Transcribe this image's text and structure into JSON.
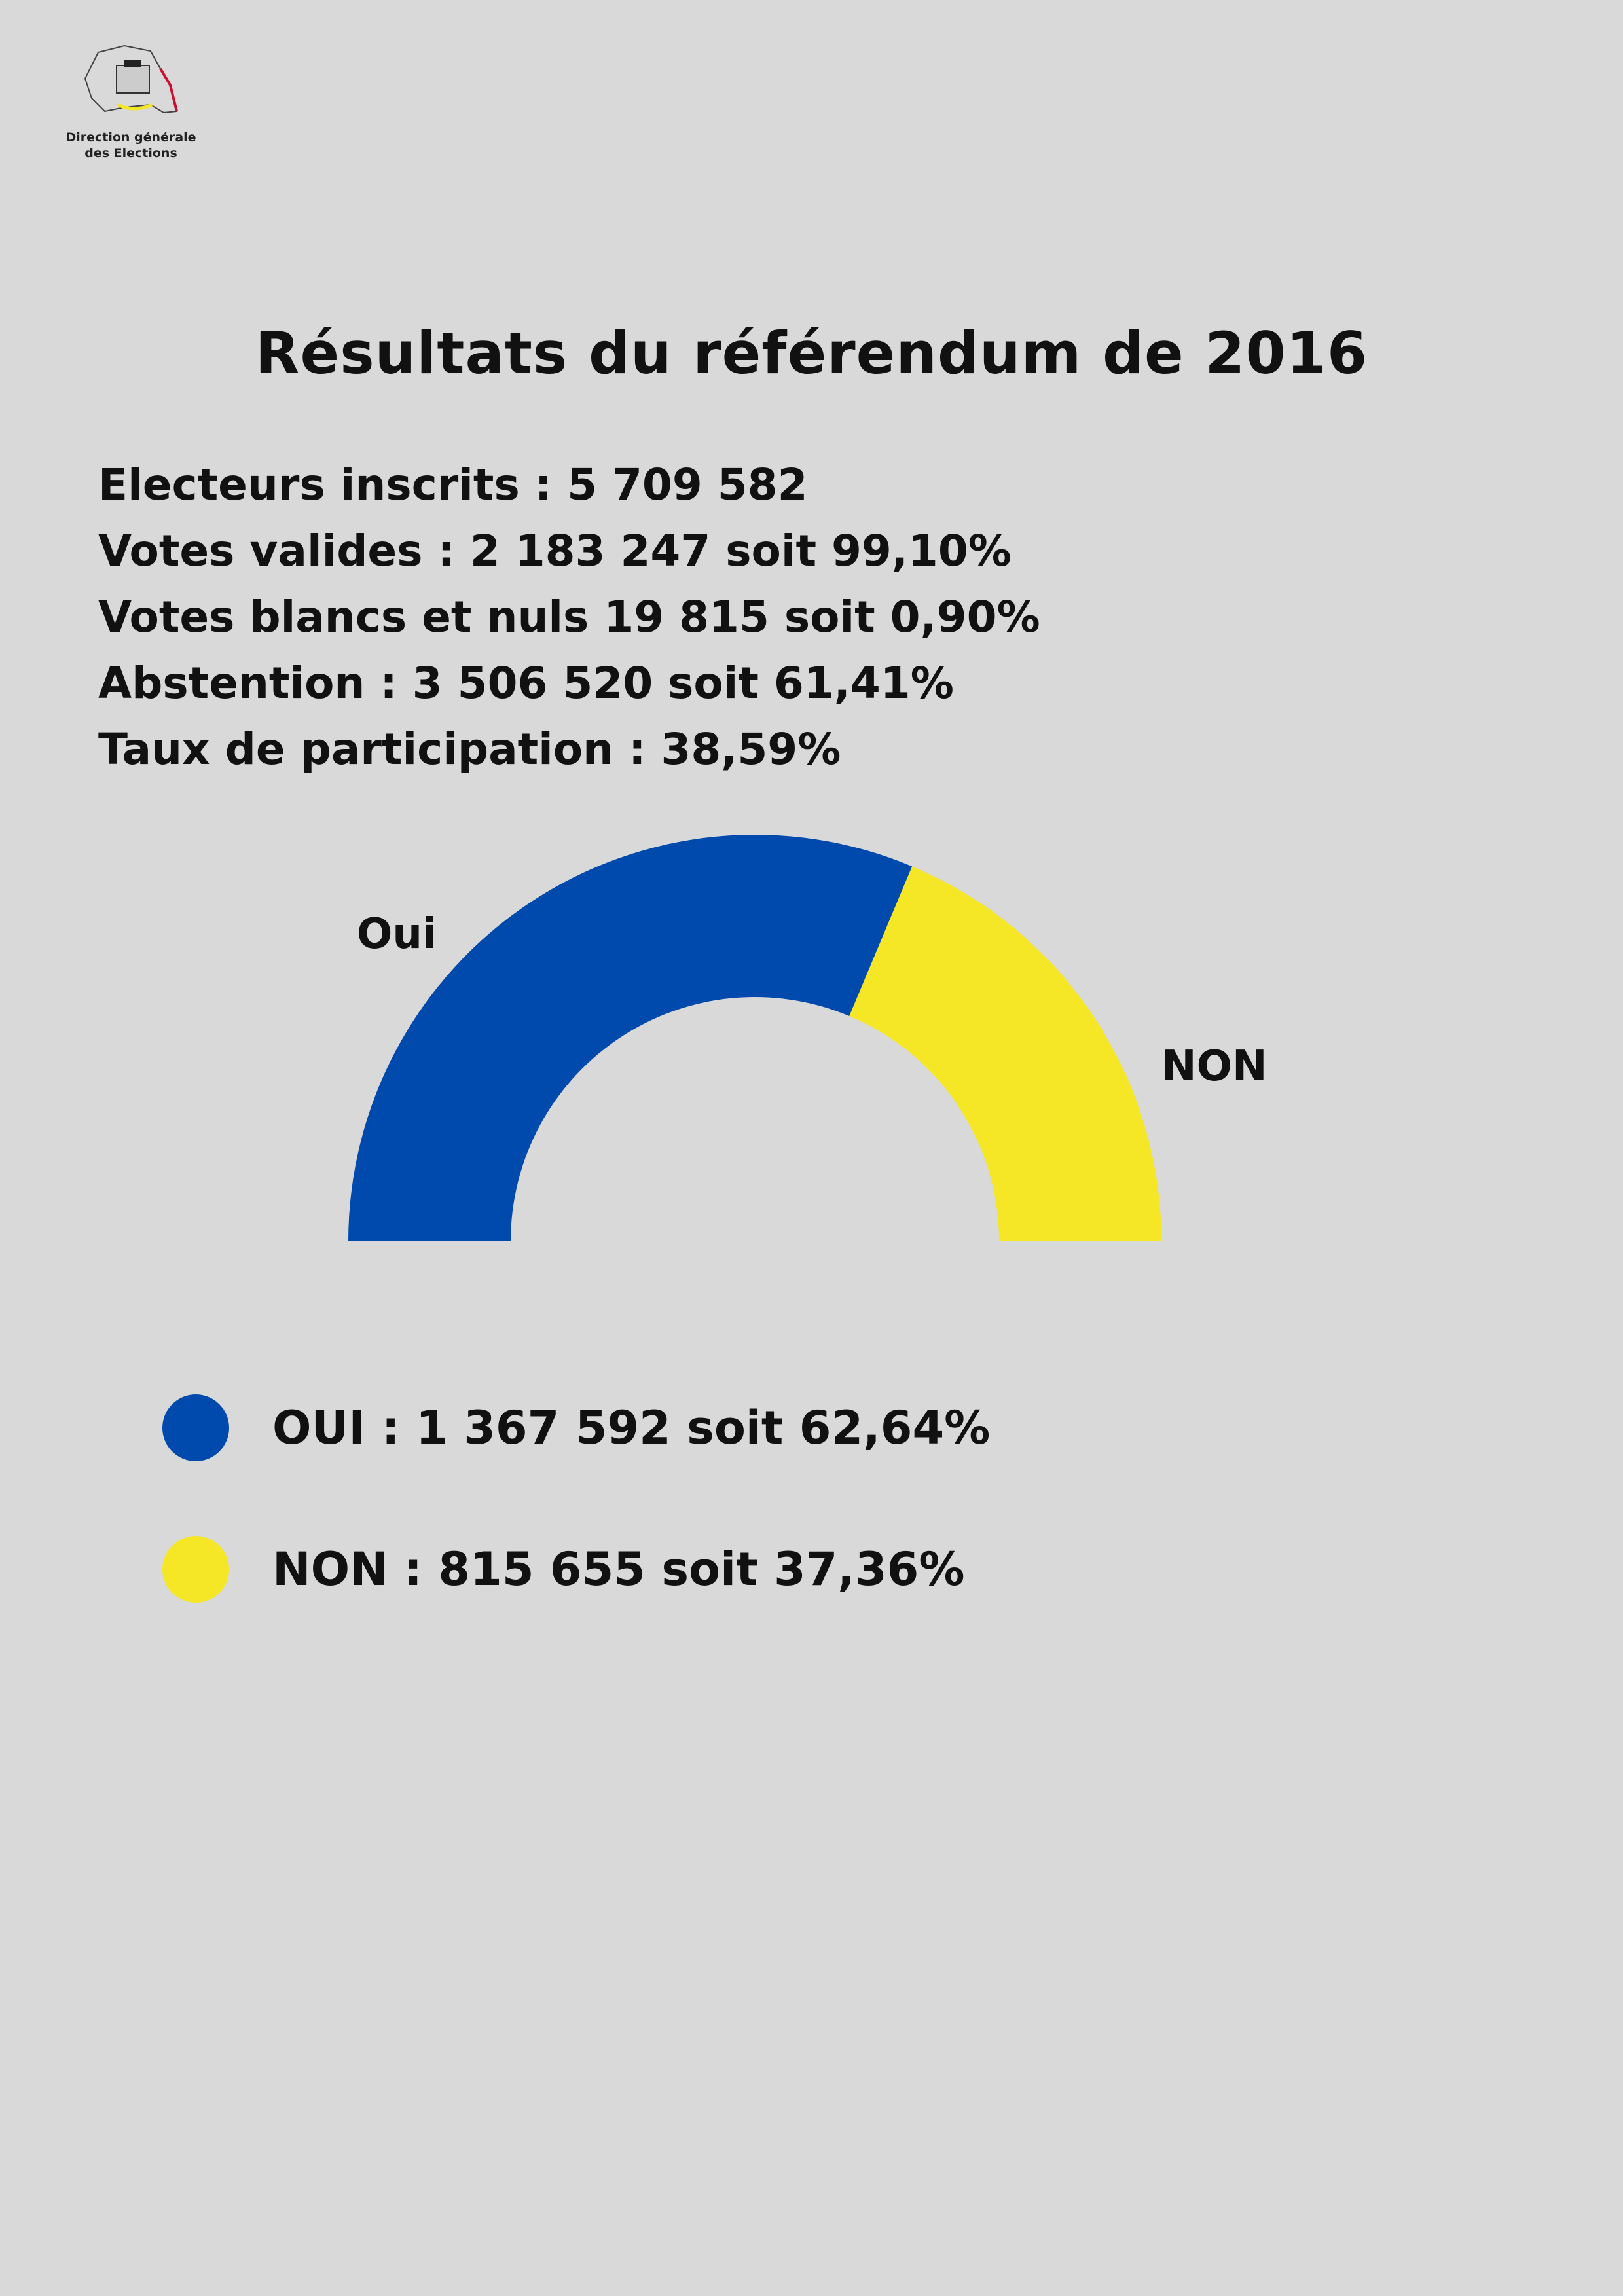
{
  "logo": {
    "line1": "Direction générale",
    "line2": "des Elections"
  },
  "title": "Résultats du référendum de 2016",
  "stats": [
    "Electeurs inscrits : 5 709 582",
    "Votes valides : 2 183 247 soit 99,10%",
    "Votes blancs et nuls 19 815 soit 0,90%",
    "Abstention : 3 506 520 soit 61,41%",
    "Taux de participation : 38,59%"
  ],
  "chart_data": {
    "type": "pie",
    "subtype": "half-donut",
    "categories": [
      "Oui",
      "NON"
    ],
    "values": [
      62.64,
      37.36
    ],
    "colors": [
      "#004aad",
      "#f5e725"
    ],
    "legend": [
      "OUI : 1 367 592 soit 62,64%",
      "NON : 815 655 soit 37,36%"
    ],
    "legend_placement": "bottom"
  }
}
